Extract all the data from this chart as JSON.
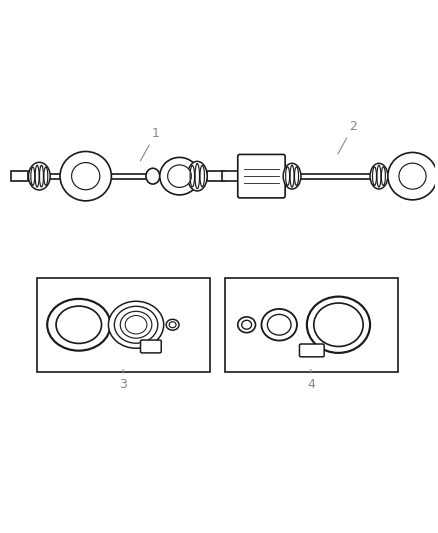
{
  "bg_color": "#ffffff",
  "line_color": "#1a1a1a",
  "label_color": "#888888",
  "figsize": [
    4.38,
    5.33
  ],
  "dpi": 100
}
